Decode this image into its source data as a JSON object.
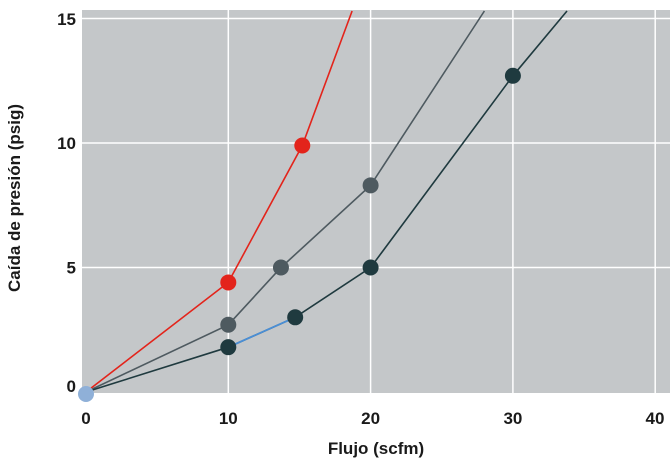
{
  "chart_data": {
    "type": "line",
    "xlabel": "Flujo (scfm)",
    "ylabel": "Caída de presión (psig)",
    "xlim": [
      0,
      40
    ],
    "ylim": [
      0,
      15
    ],
    "x_ticks": [
      "0",
      "10",
      "20",
      "30",
      "40"
    ],
    "y_ticks": [
      "0",
      "5",
      "10",
      "15"
    ],
    "grid": true,
    "background_color": "#c4c7c9",
    "grid_color": "#ffffff",
    "series": [
      {
        "color": "#e3241b",
        "points": [
          [
            0,
            0
          ],
          [
            10,
            4.4
          ],
          [
            15.2,
            9.9
          ],
          [
            18.7,
            15.3
          ]
        ],
        "markers": [
          [
            10,
            4.4
          ],
          [
            15.2,
            9.9
          ]
        ]
      },
      {
        "color": "#4e5a60",
        "points": [
          [
            0,
            0
          ],
          [
            10,
            2.7
          ],
          [
            13.7,
            5.0
          ],
          [
            20,
            8.3
          ],
          [
            28,
            15.3
          ]
        ],
        "markers": [
          [
            10,
            2.7
          ],
          [
            13.7,
            5.0
          ],
          [
            20,
            8.3
          ]
        ]
      },
      {
        "color": "#1f3a3f",
        "points": [
          [
            0,
            0
          ],
          [
            10,
            1.8
          ],
          [
            14.7,
            3.0
          ],
          [
            20,
            5.0
          ],
          [
            30,
            12.7
          ],
          [
            33.8,
            15.3
          ]
        ],
        "markers": [
          [
            10,
            1.8
          ],
          [
            14.7,
            3.0
          ],
          [
            20,
            5.0
          ],
          [
            30,
            12.7
          ]
        ],
        "highlight_segment": {
          "from": [
            10,
            1.8
          ],
          "to": [
            14.7,
            3.0
          ],
          "color": "#4a8fd6"
        }
      }
    ],
    "origin_marker_color": "#8fb0d8"
  }
}
